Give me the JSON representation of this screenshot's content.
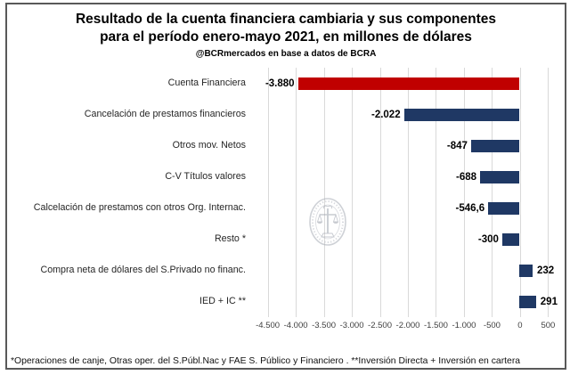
{
  "title": {
    "line1": "Resultado de la cuenta financiera cambiaria y sus componentes",
    "line2": "para el período enero-mayo 2021, en millones de dólares",
    "subtitle": "@BCRmercados en base a datos de BCRA"
  },
  "footnote": "*Operaciones de canje, Otras oper. del S.Públ.Nac y FAE S. Público y Financiero . **Inversión Directa + Inversión en cartera",
  "watermark": {
    "name": "bolsa-de-comercio-rosario-seal"
  },
  "colors": {
    "highlight_bar": "#C00000",
    "component_bar": "#1F3864",
    "gridline": "#D9D9D9",
    "frame_border": "#595959"
  },
  "chart_data": {
    "type": "bar",
    "orientation": "horizontal",
    "title": "Resultado de la cuenta financiera cambiaria y sus componentes para el período enero-mayo 2021, en millones de dólares",
    "source": "@BCRmercados en base a datos de BCRA",
    "categories": [
      "Cuenta Financiera",
      "Cancelación de prestamos financieros",
      "Otros mov. Netos",
      "C-V Títulos valores",
      "Calcelación de prestamos con otros Org. Internac.",
      "Resto *",
      "Compra neta de dólares del S.Privado no financ.",
      "IED + IC **"
    ],
    "values": [
      -3880,
      -2022,
      -847,
      -688,
      -546.6,
      -300,
      232,
      291
    ],
    "value_labels": [
      "-3.880",
      "-2.022",
      "-847",
      "-688",
      "-546,6",
      "-300",
      "232",
      "291"
    ],
    "bar_colors": [
      "#C00000",
      "#1F3864",
      "#1F3864",
      "#1F3864",
      "#1F3864",
      "#1F3864",
      "#1F3864",
      "#1F3864"
    ],
    "x_ticks": [
      -4500,
      -4000,
      -3500,
      -3000,
      -2500,
      -2000,
      -1500,
      -1000,
      -500,
      0,
      500
    ],
    "x_tick_labels": [
      "-4.500",
      "-4.000",
      "-3.500",
      "-3.000",
      "-2.500",
      "-2.000",
      "-1.500",
      "-1.000",
      "-500",
      "0",
      "500"
    ],
    "xlim": [
      -4700,
      700
    ],
    "grid": true,
    "legend": false
  }
}
